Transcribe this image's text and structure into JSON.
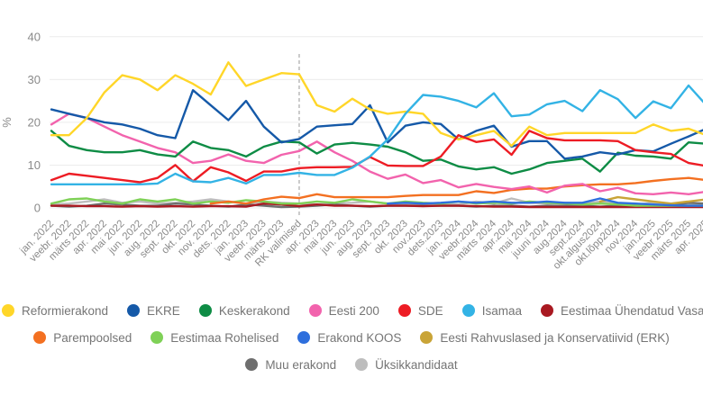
{
  "chart_data": {
    "type": "line",
    "title": "",
    "ylabel": "%",
    "ylim": [
      0,
      40
    ],
    "yticks": [
      0,
      10,
      20,
      30,
      40
    ],
    "grid": true,
    "legend_position": "bottom",
    "election_line": {
      "label": "RK valimised",
      "index": 14
    },
    "x": [
      "jan. 2022",
      "veebr. 2022",
      "märts 2022",
      "apr. 2022",
      "mai 2022",
      "jun. 2022",
      "aug. 2022",
      "sept. 2022",
      "okt. 2022",
      "nov. 2022",
      "dets. 2022",
      "jan. 2023",
      "veebr. 2023",
      "märts 2023",
      "RK valimised",
      "apr. 2023",
      "mai 2023",
      "jun. 2023",
      "aug. 2023",
      "sept. 2023",
      "okt. 2023",
      "nov.2023",
      "dets.2023",
      "jan. 2024",
      "veebr.2024",
      "märts 2024",
      "apr.2024",
      "mai 2024",
      "juuni 2024",
      "aug.2024",
      "sept.2024",
      "okt.algus2024",
      "okt.lõpp2024",
      "nov.2024",
      "jan.2025",
      "veebr 2025",
      "märts 2025",
      "apr. 2025"
    ],
    "series": [
      {
        "id": "reformierakond",
        "name": "Reformierakond",
        "color": "#ffd629",
        "values": [
          17,
          17,
          21,
          27,
          31,
          30,
          27.5,
          31,
          29,
          26.5,
          34,
          28.5,
          30,
          31.5,
          31.2,
          24,
          22.5,
          25.5,
          23,
          22,
          22.5,
          22,
          17.5,
          16,
          17,
          18,
          14.5,
          19,
          17,
          17.5,
          17.5,
          17.5,
          17.5,
          17.5,
          19.5,
          18,
          18.5,
          17
        ]
      },
      {
        "id": "ekre",
        "name": "EKRE",
        "color": "#1559a8",
        "values": [
          23,
          22,
          21,
          20,
          19.5,
          18.5,
          17,
          16.3,
          27.5,
          24,
          20.5,
          25,
          19,
          15.3,
          16.1,
          19,
          19.3,
          19.6,
          24,
          15.3,
          19.2,
          20,
          19.6,
          16,
          18,
          19.2,
          14.3,
          15.6,
          15.6,
          11.5,
          12,
          13,
          12.5,
          13.5,
          13.2,
          15,
          16.7,
          18.5
        ]
      },
      {
        "id": "keskerakond",
        "name": "Keskerakond",
        "color": "#0e8c45",
        "values": [
          18,
          14.5,
          13.5,
          13,
          13,
          13.5,
          12.5,
          12,
          15.5,
          14,
          13.5,
          12,
          14.3,
          15.5,
          15.3,
          12.7,
          14.8,
          15.2,
          14.8,
          14.3,
          13,
          11,
          11.3,
          9.7,
          9,
          9.5,
          8,
          9,
          10.5,
          11,
          11.5,
          8.5,
          12.9,
          12.2,
          12,
          11.5,
          15.3,
          15
        ]
      },
      {
        "id": "eesti-200",
        "name": "Eesti 200",
        "color": "#f263ad",
        "values": [
          19.5,
          22,
          21,
          19,
          17,
          15.5,
          14,
          13,
          10.5,
          11,
          12.5,
          11,
          10.5,
          12.4,
          13.3,
          15.5,
          13,
          11,
          8.5,
          6.8,
          7.8,
          5.8,
          6.5,
          4.8,
          5.6,
          4.9,
          4.4,
          5,
          3.6,
          5.2,
          5.6,
          3.9,
          4.7,
          3.4,
          3.2,
          3.6,
          3.2,
          3.8
        ]
      },
      {
        "id": "sde",
        "name": "SDE",
        "color": "#ed1c24",
        "values": [
          6.5,
          8,
          7.5,
          7,
          6.5,
          6,
          7,
          10,
          6.2,
          9.5,
          8.3,
          6.3,
          8.5,
          8.5,
          9.3,
          9.5,
          9.5,
          9.6,
          11.9,
          9.9,
          9.8,
          9.8,
          12,
          17,
          15.4,
          16,
          12.4,
          18,
          16.3,
          15.8,
          15.8,
          15.8,
          15.6,
          13.5,
          13,
          12.6,
          10.5,
          9.8
        ]
      },
      {
        "id": "isamaa",
        "name": "Isamaa",
        "color": "#33b3e5",
        "values": [
          5.5,
          5.5,
          5.5,
          5.5,
          5.5,
          5.5,
          5.7,
          8,
          6.2,
          6,
          7,
          5.7,
          7.7,
          7.7,
          8.2,
          7.7,
          7.7,
          9.4,
          12,
          16,
          22,
          26.4,
          26,
          25,
          23.5,
          26.8,
          21.4,
          21.8,
          24.2,
          25,
          22.6,
          27.5,
          25.4,
          21,
          24.9,
          23.3,
          28.6,
          24
        ]
      },
      {
        "id": "vasakpartei",
        "name": "Eestimaa Ühendatud Vasakpartei",
        "color": "#a91921",
        "values": [
          0.5,
          0.5,
          0.4,
          0.4,
          0.3,
          0.4,
          0.3,
          0.4,
          0.3,
          0.4,
          0.4,
          0.3,
          1,
          0.8,
          0.4,
          0.8,
          0.5,
          0.5,
          0.4,
          0.5,
          0.5,
          0.4,
          0.5,
          0.5,
          0.4,
          0.3,
          0.3,
          0.2,
          0.2,
          0.2,
          0.2,
          0.2,
          0.2,
          0.2,
          0.2,
          0.2,
          0.2,
          0.2
        ]
      },
      {
        "id": "parempoolsed",
        "name": "Parempoolsed",
        "color": "#f37021",
        "values": [
          null,
          null,
          null,
          null,
          null,
          null,
          null,
          null,
          null,
          1,
          1.5,
          1,
          2,
          2.6,
          2.3,
          3.2,
          2.5,
          2.5,
          2.5,
          2.5,
          2.8,
          3,
          3,
          3,
          3.9,
          3.5,
          4.2,
          4.5,
          4.5,
          5,
          5.3,
          5.5,
          5.5,
          5.8,
          6.3,
          6.7,
          7,
          6.5
        ]
      },
      {
        "id": "rohelised",
        "name": "Eestimaa Rohelised",
        "color": "#7fd157",
        "values": [
          1,
          2,
          2.2,
          1.5,
          1,
          2,
          1.5,
          2,
          1,
          1.5,
          1.2,
          1.8,
          1.5,
          1,
          1,
          1.5,
          1.2,
          2,
          1.5,
          1,
          1.5,
          1.2,
          1,
          1.5,
          1,
          1.2,
          1,
          1.5,
          1.2,
          1,
          0.8,
          1,
          0.8,
          0.5,
          0.5,
          0.5,
          0.5,
          0.5
        ]
      },
      {
        "id": "koos",
        "name": "Erakond KOOS",
        "color": "#2e6fdd",
        "values": [
          null,
          null,
          null,
          null,
          null,
          null,
          null,
          null,
          null,
          null,
          null,
          null,
          null,
          null,
          null,
          null,
          null,
          null,
          null,
          1,
          1.2,
          1,
          1.2,
          1.5,
          1.2,
          1.5,
          1.2,
          1.2,
          1.5,
          1.2,
          1.2,
          2.2,
          1.2,
          1,
          0.8,
          0.6,
          0.5,
          0.5
        ]
      },
      {
        "id": "erk",
        "name": "Eesti Rahvuslased ja Konservatiivid (ERK)",
        "color": "#c9a437",
        "values": [
          null,
          null,
          null,
          null,
          null,
          null,
          null,
          null,
          null,
          null,
          null,
          null,
          null,
          null,
          null,
          null,
          null,
          null,
          null,
          null,
          null,
          null,
          null,
          null,
          null,
          null,
          null,
          null,
          null,
          null,
          null,
          1.5,
          2.5,
          2,
          1.5,
          1,
          1.5,
          2
        ]
      },
      {
        "id": "muu-erakond",
        "name": "Muu erakond",
        "color": "#6e6e6e",
        "values": [
          0.5,
          0.3,
          0.5,
          1,
          0.8,
          0.5,
          0.5,
          1,
          0.8,
          0.5,
          0.3,
          0.8,
          0.5,
          0.2,
          0.3,
          0.5,
          0.8,
          0.5,
          0.3,
          0.5,
          0.5,
          0.5,
          0.5,
          0.5,
          0.3,
          0.5,
          0.5,
          0.3,
          0.5,
          0.5,
          0.5,
          0.3,
          0.5,
          0.8,
          0.5,
          0.5,
          1.2,
          1
        ]
      },
      {
        "id": "uksikkandidaat",
        "name": "Üksikkandidaat",
        "color": "#bdbdbd",
        "values": [
          0.8,
          1,
          1.5,
          2,
          1.2,
          1.5,
          1,
          1.2,
          1.5,
          2,
          1.5,
          1,
          1.5,
          1.2,
          1,
          0.8,
          1,
          1.2,
          1.5,
          1,
          0.8,
          1,
          1,
          0.8,
          1.5,
          1,
          2.2,
          1.2,
          1,
          1.2,
          1,
          1.5,
          1,
          0.8,
          1.2,
          1,
          0.8,
          1
        ]
      }
    ],
    "legend_rows": [
      [
        0,
        1,
        2,
        3,
        4,
        5,
        6
      ],
      [
        7,
        8,
        9,
        10
      ],
      [
        11,
        12
      ]
    ]
  },
  "colors": {
    "grid": "#ececec",
    "axis_text": "#8a8a8a",
    "legend_text": "#757575",
    "dashed_line": "#b5b5b5",
    "background": "#ffffff"
  }
}
